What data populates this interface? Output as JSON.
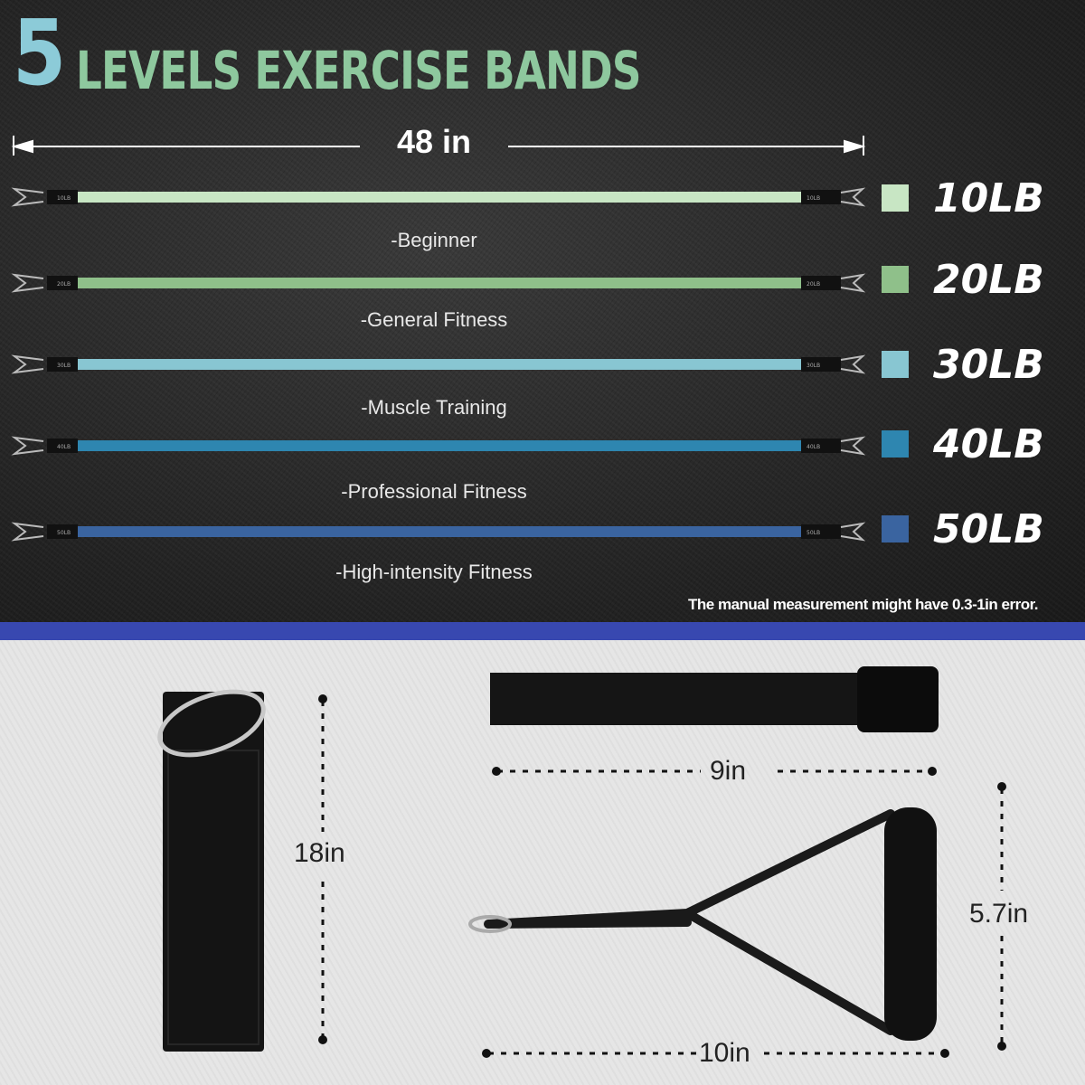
{
  "title": {
    "number": "5",
    "text": "LEVELS EXERCISE BANDS"
  },
  "length_label": "48 in",
  "bands": [
    {
      "weight": "10LB",
      "level": "-Beginner",
      "color": "#c8e6c4",
      "tag": "10LB"
    },
    {
      "weight": "20LB",
      "level": "-General Fitness",
      "color": "#8fc08a",
      "tag": "20LB"
    },
    {
      "weight": "30LB",
      "level": "-Muscle Training",
      "color": "#88c6d2",
      "tag": "30LB"
    },
    {
      "weight": "40LB",
      "level": "-Professional  Fitness",
      "color": "#2e86b0",
      "tag": "40LB"
    },
    {
      "weight": "50LB",
      "level": "-High-intensity Fitness",
      "color": "#3a64a0",
      "tag": "50LB"
    }
  ],
  "note": "The manual measurement might have 0.3-1in error.",
  "accessories": {
    "ankle_strap_length": "18in",
    "door_anchor_length": "9in",
    "handle_height": "5.7in",
    "handle_width": "10in"
  }
}
